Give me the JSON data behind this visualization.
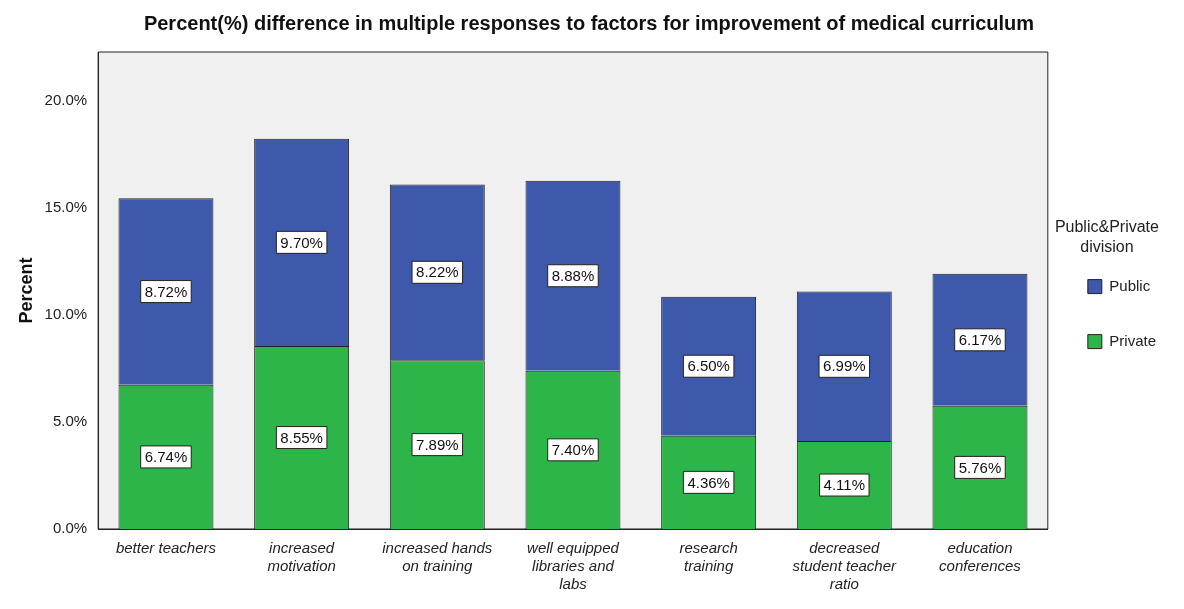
{
  "chart_data": {
    "type": "bar",
    "title": "Percent(%) difference in multiple responses to factors for improvement of medical curriculum",
    "ylabel": "Percent",
    "legend_title": "Public&Private division",
    "categories": [
      "better teachers",
      "increased motivation",
      "increased hands on training",
      "well equipped libraries and labs",
      "research training",
      "decreased student teacher ratio",
      "education conferences"
    ],
    "series": [
      {
        "name": "Private",
        "color": "#2db54a",
        "values": [
          6.74,
          8.55,
          7.89,
          7.4,
          4.36,
          4.11,
          5.76
        ],
        "value_labels": [
          "6.74%",
          "8.55%",
          "7.89%",
          "7.40%",
          "4.36%",
          "4.11%",
          "5.76%"
        ]
      },
      {
        "name": "Public",
        "color": "#3e58ac",
        "values": [
          8.72,
          9.7,
          8.22,
          8.88,
          6.5,
          6.99,
          6.17
        ],
        "value_labels": [
          "8.72%",
          "9.70%",
          "8.22%",
          "8.88%",
          "6.50%",
          "6.99%",
          "6.17%"
        ]
      }
    ],
    "stacked": true,
    "ylim": [
      0,
      22.3
    ],
    "yticks": [
      {
        "value": 0,
        "label": "0.0%"
      },
      {
        "value": 5,
        "label": "5.0%"
      },
      {
        "value": 10,
        "label": "10.0%"
      },
      {
        "value": 15,
        "label": "15.0%"
      },
      {
        "value": 20,
        "label": "20.0%"
      }
    ],
    "grid": false,
    "legend": "right"
  }
}
